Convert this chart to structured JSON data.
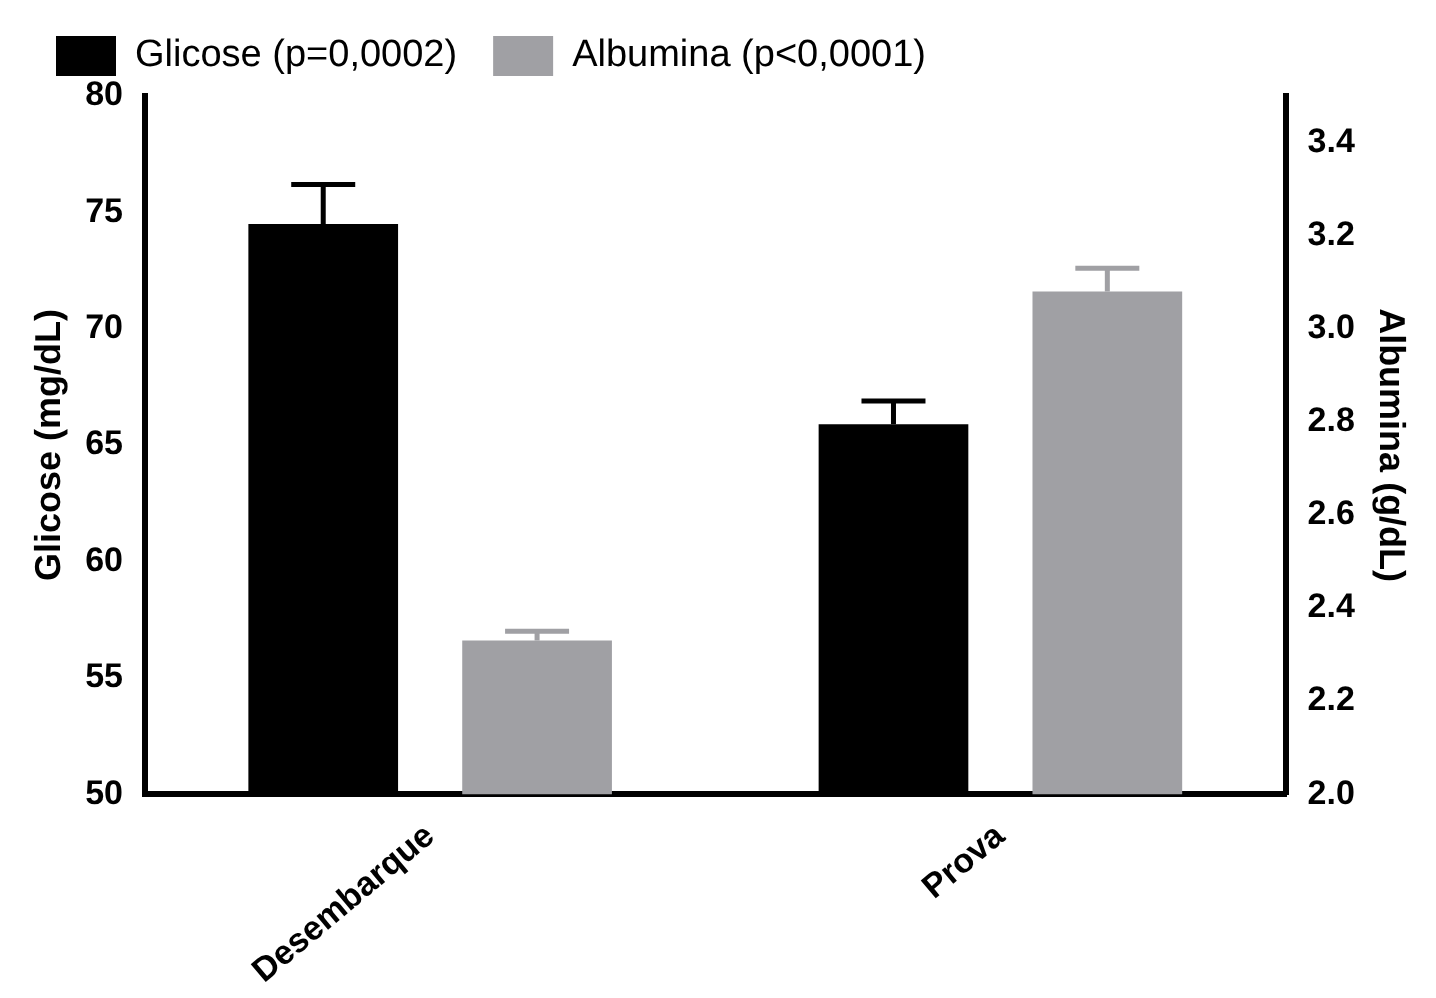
{
  "chart_data": {
    "type": "bar",
    "categories": [
      "Desembarque",
      "Prova"
    ],
    "series": [
      {
        "name": "Glicose (p=0,0002)",
        "color": "#000000",
        "values": [
          74.5,
          65.9
        ],
        "errors": [
          1.7,
          1.0
        ]
      },
      {
        "name": "Albumina (p<0,0001)",
        "color": "#a0a0a4",
        "values": [
          2.33,
          3.08
        ],
        "errors": [
          0.02,
          0.05
        ],
        "axis": "y2"
      }
    ],
    "ylabel": "Glicose (mg/dL)",
    "y2label": "Albumina (g/dL)",
    "ylim": [
      50,
      80
    ],
    "yticks": [
      50,
      55,
      60,
      65,
      70,
      75,
      80
    ],
    "y2lim": [
      2.0,
      3.5
    ],
    "y2ticks": [
      {
        "value": 2.0,
        "label": "2.0"
      },
      {
        "value": 2.2,
        "label": "2.2"
      },
      {
        "value": 2.4,
        "label": "2.4"
      },
      {
        "value": 2.6,
        "label": "2.6"
      },
      {
        "value": 2.8,
        "label": "2.8"
      },
      {
        "value": 3.0,
        "label": "3.0"
      },
      {
        "value": 3.2,
        "label": "3.2"
      },
      {
        "value": 3.4,
        "label": "3.4"
      }
    ],
    "grid": false,
    "legend": "top left"
  }
}
